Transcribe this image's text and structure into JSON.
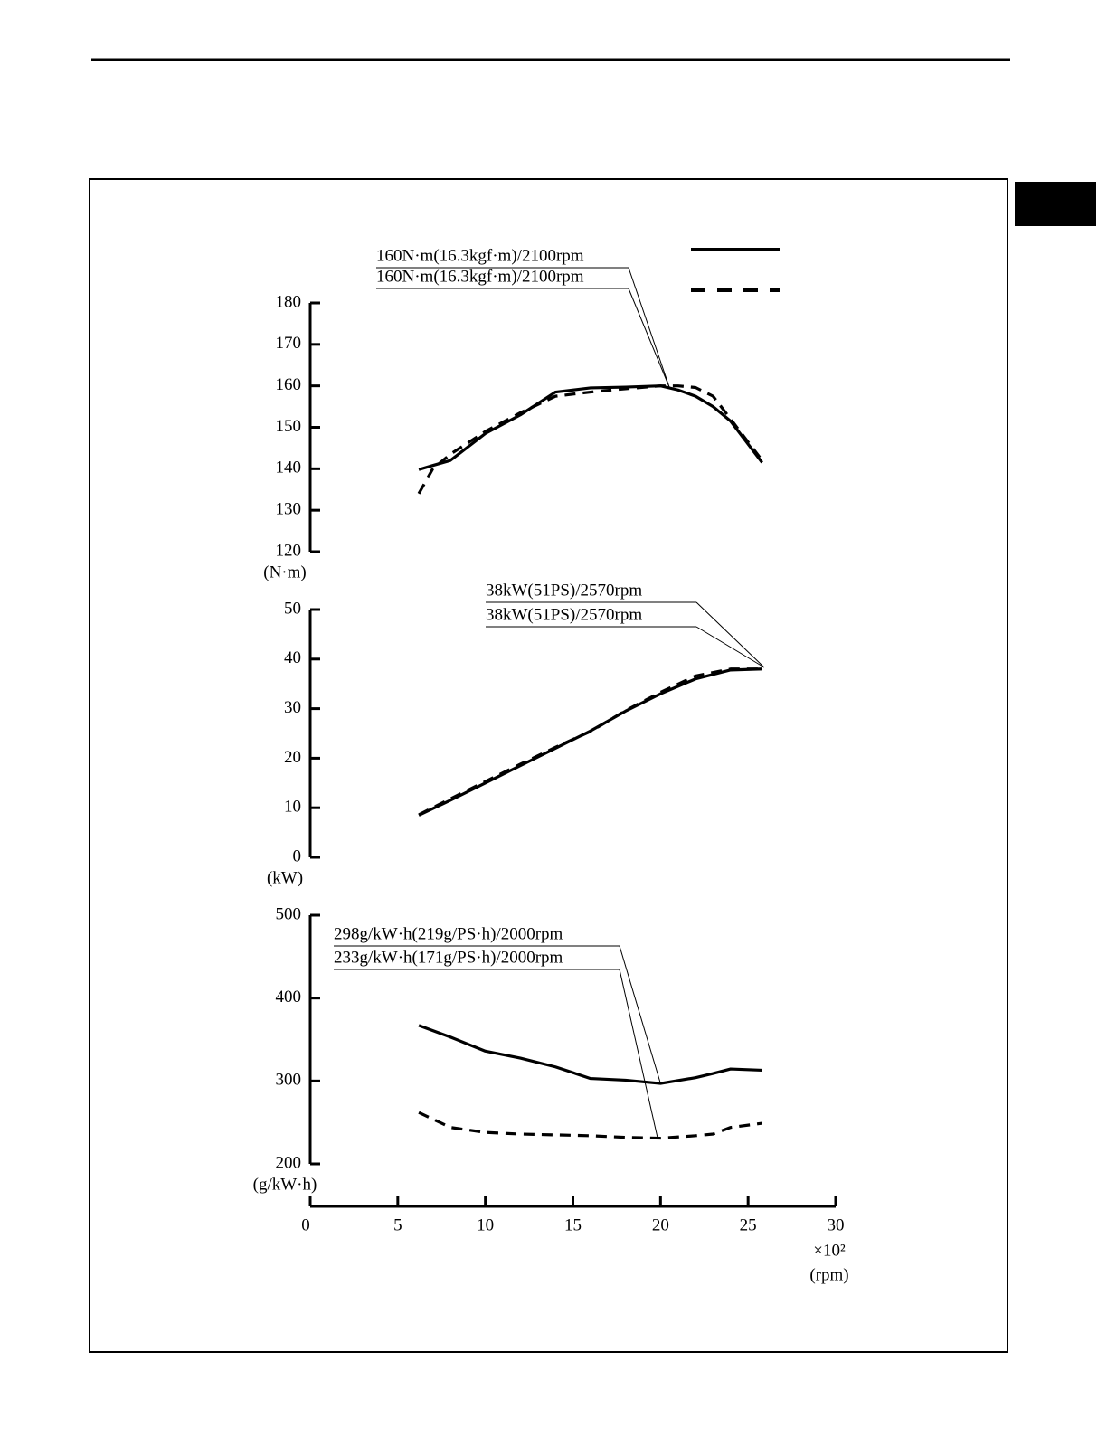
{
  "chart_data": [
    {
      "type": "line",
      "x": [
        6.2,
        7,
        8,
        10,
        12,
        14,
        16,
        18,
        20,
        21,
        22,
        23,
        24,
        25.8
      ],
      "series": [
        {
          "color": "#000000",
          "style": "solid",
          "values": [
            139.8,
            140.8,
            142,
            148.5,
            153,
            158.5,
            159.5,
            159.7,
            160,
            159,
            157.5,
            155,
            151.5,
            141.5
          ]
        },
        {
          "color": "#000000",
          "style": "dashed",
          "values": [
            134,
            140,
            143.5,
            149,
            153.5,
            157.5,
            158.5,
            159.3,
            160,
            160,
            159.6,
            157.5,
            152,
            142
          ]
        }
      ],
      "ylim": [
        120,
        180
      ],
      "yticks": [
        120,
        130,
        140,
        150,
        160,
        170,
        180
      ],
      "ylabel": "(N·m)",
      "annotations": [
        "160N·m(16.3kgf·m)/2100rpm",
        "160N·m(16.3kgf·m)/2100rpm"
      ],
      "legend": true
    },
    {
      "type": "line",
      "x": [
        6.2,
        8,
        10,
        12,
        14,
        16,
        18,
        20,
        22,
        24,
        25.8
      ],
      "series": [
        {
          "color": "#000000",
          "style": "solid",
          "values": [
            8.5,
            11.5,
            15,
            18.5,
            22,
            25.5,
            29.5,
            33,
            36,
            37.8,
            38
          ]
        },
        {
          "color": "#000000",
          "style": "dashed",
          "values": [
            8.6,
            11.8,
            15.3,
            18.8,
            22.2,
            25.4,
            29.6,
            33.3,
            36.6,
            38,
            38
          ]
        }
      ],
      "ylim": [
        0,
        50
      ],
      "yticks": [
        0,
        10,
        20,
        30,
        40,
        50
      ],
      "ylabel": "(kW)",
      "annotations": [
        "38kW(51PS)/2570rpm",
        "38kW(51PS)/2570rpm"
      ]
    },
    {
      "type": "line",
      "x": [
        6.2,
        8,
        10,
        12,
        14,
        16,
        18,
        20,
        22,
        23,
        24,
        25.8
      ],
      "series": [
        {
          "color": "#000000",
          "style": "solid",
          "values": [
            367,
            353,
            336,
            327.6,
            317,
            303,
            301,
            297,
            304,
            309,
            314.5,
            313
          ]
        },
        {
          "color": "#000000",
          "style": "dashed",
          "values": [
            262,
            244,
            238,
            236,
            235,
            234,
            232,
            231,
            234,
            236,
            244,
            249
          ]
        }
      ],
      "ylim": [
        200,
        500
      ],
      "yticks": [
        200,
        300,
        400,
        500
      ],
      "ylabel": "(g/kW·h)",
      "annotations": [
        "298g/kW·h(219g/PS·h)/2000rpm",
        "233g/kW·h(171g/PS·h)/2000rpm"
      ],
      "xlim": [
        0,
        30
      ],
      "xticks": [
        0,
        5,
        10,
        15,
        20,
        25,
        30
      ],
      "xlabel_multiplier": "×10²",
      "xlabel": "(rpm)"
    }
  ]
}
